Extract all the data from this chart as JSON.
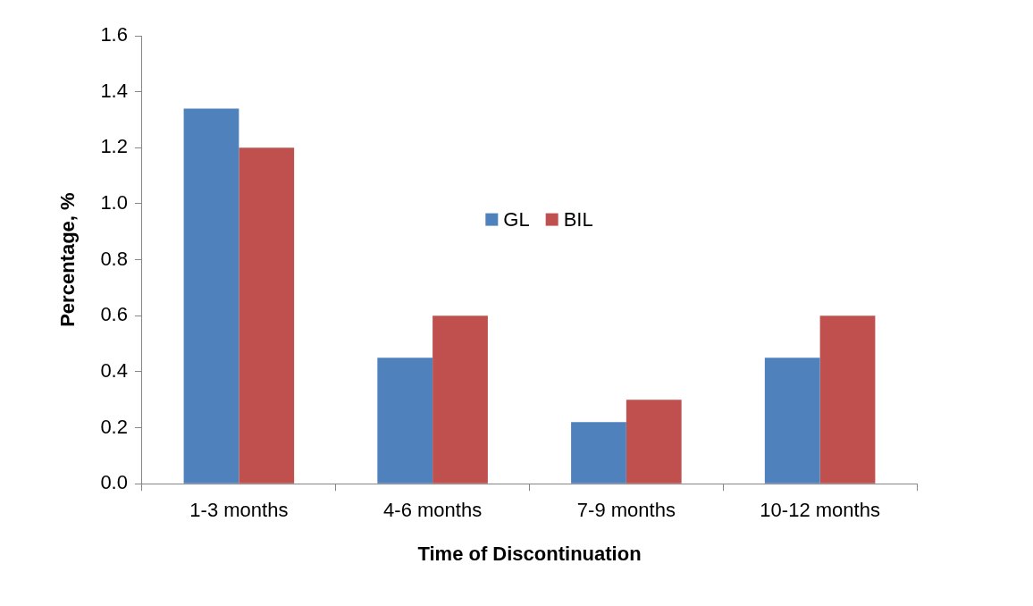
{
  "chart_data": {
    "type": "bar",
    "xlabel": "Time of Discontinuation",
    "ylabel": "Percentage, %",
    "categories": [
      "1-3 months",
      "4-6 months",
      "7-9 months",
      "10-12 months"
    ],
    "series": [
      {
        "name": "GL",
        "color": "#4f81bd",
        "values": [
          1.34,
          0.45,
          0.22,
          0.45
        ]
      },
      {
        "name": "BIL",
        "color": "#c0504d",
        "values": [
          1.2,
          0.6,
          0.3,
          0.6
        ]
      }
    ],
    "ylim": [
      0,
      1.6
    ],
    "yticks": [
      {
        "value": 0,
        "label": "0.0"
      },
      {
        "value": 0.2,
        "label": "0.2"
      },
      {
        "value": 0.4,
        "label": "0.4"
      },
      {
        "value": 0.6,
        "label": "0.6"
      },
      {
        "value": 0.8,
        "label": "0.8"
      },
      {
        "value": 1,
        "label": "1.0"
      },
      {
        "value": 1.2,
        "label": "1.2"
      },
      {
        "value": 1.4,
        "label": "1.4"
      },
      {
        "value": 1.6,
        "label": "1.6"
      }
    ],
    "grid": false,
    "legend": "center"
  }
}
